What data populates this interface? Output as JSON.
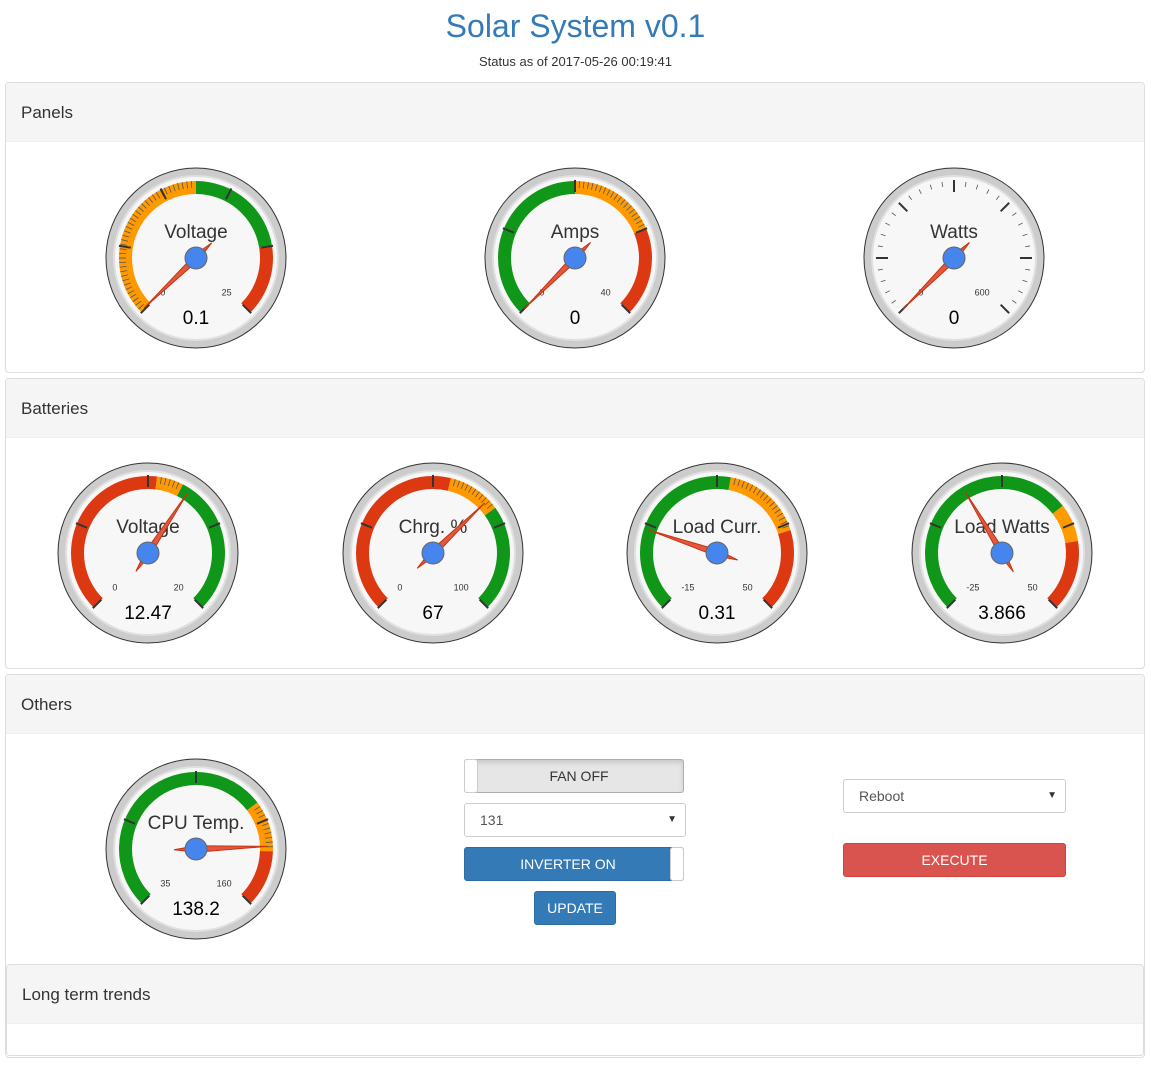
{
  "header": {
    "title": "Solar System v0.1",
    "status": "Status as of 2017-05-26 00:19:41"
  },
  "colors": {
    "accent": "#337ab7",
    "green": "#109618",
    "orange": "#ff9900",
    "red": "#dc3912",
    "needle": "#e2583e",
    "hub": "#4684ee",
    "danger": "#d9534f"
  },
  "panels": {
    "panels_heading": "Panels",
    "batteries_heading": "Batteries",
    "others_heading": "Others",
    "trends_heading": "Long term trends"
  },
  "gauges": {
    "panel_voltage": {
      "label": "Voltage",
      "value": "0.1",
      "num": 0.1,
      "min": 0,
      "max": 25,
      "min_label": "0",
      "max_label": "25",
      "bands": [
        {
          "from": 0,
          "to": 12.5,
          "color": "orange",
          "minor": true
        },
        {
          "from": 12.5,
          "to": 20,
          "color": "green"
        },
        {
          "from": 20,
          "to": 25,
          "color": "red"
        }
      ],
      "ticks": 5
    },
    "panel_amps": {
      "label": "Amps",
      "value": "0",
      "num": 0,
      "min": 0,
      "max": 40,
      "min_label": "0",
      "max_label": "40",
      "bands": [
        {
          "from": 0,
          "to": 20,
          "color": "green"
        },
        {
          "from": 20,
          "to": 30,
          "color": "orange",
          "minor": true
        },
        {
          "from": 30,
          "to": 40,
          "color": "red"
        }
      ],
      "ticks": 4
    },
    "panel_watts": {
      "label": "Watts",
      "value": "0",
      "num": 0,
      "min": 0,
      "max": 600,
      "min_label": "0",
      "max_label": "600",
      "bands": [],
      "ticks": 6,
      "minor_all": true
    },
    "battery_voltage": {
      "label": "Voltage",
      "value": "12.47",
      "num": 12.47,
      "min": 0,
      "max": 20,
      "min_label": "0",
      "max_label": "20",
      "bands": [
        {
          "from": 0,
          "to": 10.5,
          "color": "red"
        },
        {
          "from": 10.5,
          "to": 12,
          "color": "orange",
          "minor": true
        },
        {
          "from": 12,
          "to": 20,
          "color": "green"
        }
      ],
      "ticks": 4
    },
    "battery_charge": {
      "label": "Chrg. %",
      "value": "67",
      "num": 67,
      "min": 0,
      "max": 100,
      "min_label": "0",
      "max_label": "100",
      "bands": [
        {
          "from": 0,
          "to": 55,
          "color": "red"
        },
        {
          "from": 55,
          "to": 70,
          "color": "orange",
          "minor": true
        },
        {
          "from": 70,
          "to": 100,
          "color": "green"
        }
      ],
      "ticks": 4
    },
    "load_current": {
      "label": "Load Curr.",
      "value": "0.31",
      "num": 0.31,
      "min": -15,
      "max": 50,
      "min_label": "-15",
      "max_label": "50",
      "bands": [
        {
          "from": -15,
          "to": 20,
          "color": "green"
        },
        {
          "from": 20,
          "to": 35,
          "color": "orange",
          "minor": true
        },
        {
          "from": 35,
          "to": 50,
          "color": "red"
        }
      ],
      "ticks": 4
    },
    "load_watts": {
      "label": "Load Watts",
      "value": "3.866",
      "num": 3.866,
      "min": -25,
      "max": 50,
      "min_label": "-25",
      "max_label": "50",
      "bands": [
        {
          "from": -25,
          "to": 27,
          "color": "green"
        },
        {
          "from": 27,
          "to": 35,
          "color": "orange"
        },
        {
          "from": 35,
          "to": 50,
          "color": "red"
        }
      ],
      "ticks": 4
    },
    "cpu_temp": {
      "label": "CPU Temp.",
      "value": "138.2",
      "num": 138.2,
      "min": 35,
      "max": 160,
      "min_label": "35",
      "max_label": "160",
      "bands": [
        {
          "from": 35,
          "to": 122,
          "color": "green"
        },
        {
          "from": 122,
          "to": 140,
          "color": "orange",
          "minor": true
        },
        {
          "from": 140,
          "to": 160,
          "color": "red"
        }
      ],
      "ticks": 4
    }
  },
  "controls": {
    "fan_toggle": "FAN OFF",
    "fan_select_value": "131",
    "inverter_toggle": "INVERTER ON",
    "update_button": "UPDATE",
    "action_select_value": "Reboot",
    "execute_button": "EXECUTE"
  }
}
